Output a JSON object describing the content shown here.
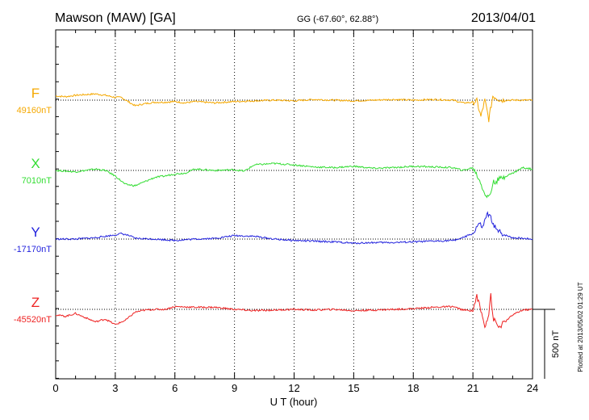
{
  "header": {
    "station": "Mawson (MAW)  [GA]",
    "coords": "GG (-67.60°,  62.88°)",
    "date": "2013/04/01"
  },
  "footer": {
    "plotted_note": "Plotted at 2013/05/02 01:29 UT"
  },
  "chart_data": {
    "type": "line",
    "title": "Mawson (MAW)  [GA]",
    "xlabel": "U T (hour)",
    "xlim": [
      0,
      24
    ],
    "xticks": [
      0,
      3,
      6,
      9,
      12,
      15,
      18,
      21,
      24
    ],
    "xtick_labels": [
      "0",
      "3",
      "6",
      "9",
      "12",
      "15",
      "18",
      "21",
      "24"
    ],
    "scale_bar": {
      "label": "500 nT",
      "value_nT": 500
    },
    "grid": "dotted vertical at every 3 hours, dotted baseline per component",
    "series": [
      {
        "name": "F",
        "baseline_label": "49160nT",
        "baseline_nT": 49160,
        "color": "#f5a800",
        "points": [
          [
            0,
            30
          ],
          [
            0.5,
            25
          ],
          [
            1,
            35
          ],
          [
            1.5,
            40
          ],
          [
            2,
            45
          ],
          [
            2.5,
            35
          ],
          [
            3,
            20
          ],
          [
            3.3,
            20
          ],
          [
            3.7,
            -15
          ],
          [
            4,
            -40
          ],
          [
            4.5,
            -25
          ],
          [
            5,
            -15
          ],
          [
            5.5,
            -15
          ],
          [
            6,
            -10
          ],
          [
            6.5,
            -20
          ],
          [
            7,
            -10
          ],
          [
            7.5,
            -15
          ],
          [
            8,
            -20
          ],
          [
            8.5,
            -15
          ],
          [
            9,
            -10
          ],
          [
            10,
            -5
          ],
          [
            11,
            0
          ],
          [
            12,
            -5
          ],
          [
            13,
            5
          ],
          [
            14,
            0
          ],
          [
            15,
            -5
          ],
          [
            16,
            0
          ],
          [
            17,
            5
          ],
          [
            18,
            0
          ],
          [
            19,
            5
          ],
          [
            20,
            0
          ],
          [
            20.5,
            -20
          ],
          [
            21,
            -15
          ],
          [
            21.2,
            -5
          ],
          [
            21.4,
            -120
          ],
          [
            21.6,
            0
          ],
          [
            21.8,
            -140
          ],
          [
            22,
            30
          ],
          [
            22.4,
            0
          ],
          [
            23,
            0
          ],
          [
            24,
            0
          ]
        ]
      },
      {
        "name": "X",
        "baseline_label": "7010nT",
        "baseline_nT": 7010,
        "color": "#33dd33",
        "points": [
          [
            0,
            0
          ],
          [
            1,
            -10
          ],
          [
            2,
            10
          ],
          [
            2.5,
            0
          ],
          [
            3,
            -40
          ],
          [
            3.5,
            -100
          ],
          [
            4,
            -110
          ],
          [
            4.5,
            -80
          ],
          [
            5,
            -50
          ],
          [
            5.5,
            -40
          ],
          [
            6,
            -25
          ],
          [
            6.5,
            -20
          ],
          [
            7,
            10
          ],
          [
            8,
            0
          ],
          [
            9,
            5
          ],
          [
            9.5,
            -5
          ],
          [
            10,
            40
          ],
          [
            11,
            50
          ],
          [
            12,
            40
          ],
          [
            13,
            25
          ],
          [
            14,
            20
          ],
          [
            15,
            30
          ],
          [
            16,
            15
          ],
          [
            17,
            20
          ],
          [
            18,
            30
          ],
          [
            19,
            25
          ],
          [
            20,
            20
          ],
          [
            20.5,
            0
          ],
          [
            21,
            20
          ],
          [
            21.3,
            -60
          ],
          [
            21.5,
            -130
          ],
          [
            21.7,
            -200
          ],
          [
            21.9,
            -160
          ],
          [
            22,
            -90
          ],
          [
            22.5,
            -50
          ],
          [
            23,
            -20
          ],
          [
            23.5,
            20
          ],
          [
            24,
            10
          ]
        ]
      },
      {
        "name": "Y",
        "baseline_label": "-17170nT",
        "baseline_nT": -17170,
        "color": "#2222dd",
        "points": [
          [
            0,
            0
          ],
          [
            1,
            0
          ],
          [
            2,
            10
          ],
          [
            2.5,
            20
          ],
          [
            3,
            30
          ],
          [
            3.3,
            40
          ],
          [
            3.7,
            25
          ],
          [
            4,
            5
          ],
          [
            5,
            0
          ],
          [
            6,
            -10
          ],
          [
            7,
            0
          ],
          [
            8,
            5
          ],
          [
            9,
            25
          ],
          [
            10,
            20
          ],
          [
            11,
            0
          ],
          [
            12,
            -10
          ],
          [
            13,
            -15
          ],
          [
            14,
            -20
          ],
          [
            15,
            -30
          ],
          [
            16,
            -25
          ],
          [
            17,
            -25
          ],
          [
            18,
            -20
          ],
          [
            19,
            -15
          ],
          [
            20,
            -10
          ],
          [
            20.5,
            10
          ],
          [
            21,
            40
          ],
          [
            21.3,
            110
          ],
          [
            21.5,
            80
          ],
          [
            21.7,
            180
          ],
          [
            21.9,
            150
          ],
          [
            22.2,
            60
          ],
          [
            22.6,
            30
          ],
          [
            23,
            10
          ],
          [
            24,
            0
          ]
        ]
      },
      {
        "name": "Z",
        "baseline_label": "-45520nT",
        "baseline_nT": -45520,
        "color": "#ee2222",
        "points": [
          [
            0,
            -40
          ],
          [
            0.5,
            -50
          ],
          [
            1,
            -30
          ],
          [
            1.5,
            -60
          ],
          [
            2,
            -90
          ],
          [
            2.5,
            -70
          ],
          [
            3,
            -110
          ],
          [
            3.5,
            -80
          ],
          [
            4,
            -20
          ],
          [
            4.5,
            -5
          ],
          [
            5,
            0
          ],
          [
            5.5,
            0
          ],
          [
            6,
            20
          ],
          [
            7,
            15
          ],
          [
            8,
            15
          ],
          [
            9,
            0
          ],
          [
            10,
            -10
          ],
          [
            11,
            -5
          ],
          [
            12,
            0
          ],
          [
            13,
            -5
          ],
          [
            14,
            0
          ],
          [
            15,
            -10
          ],
          [
            16,
            -5
          ],
          [
            17,
            0
          ],
          [
            18,
            5
          ],
          [
            19,
            15
          ],
          [
            20,
            20
          ],
          [
            20.5,
            -5
          ],
          [
            21,
            -10
          ],
          [
            21.2,
            100
          ],
          [
            21.4,
            -10
          ],
          [
            21.6,
            -120
          ],
          [
            21.8,
            -30
          ],
          [
            21.9,
            120
          ],
          [
            22,
            -60
          ],
          [
            22.3,
            -130
          ],
          [
            22.7,
            -80
          ],
          [
            23,
            -40
          ],
          [
            23.5,
            -5
          ],
          [
            24,
            0
          ]
        ]
      }
    ]
  }
}
